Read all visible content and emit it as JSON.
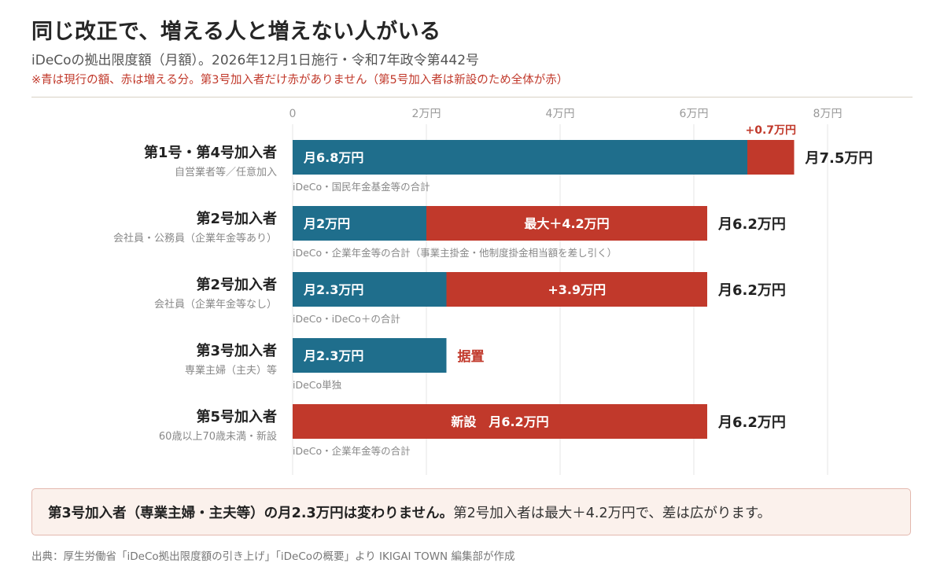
{
  "header": {
    "title": "同じ改正で、増える人と増えない人がいる",
    "subtitle": "iDeCoの拠出限度額（月額）。2026年12月1日施行・令和7年政令第442号",
    "note": "※青は現行の額、赤は増える分。第3号加入者だけ赤がありません（第5号加入者は新設のため全体が赤）"
  },
  "colors": {
    "current": "#1f6e8c",
    "increase": "#c1392b",
    "grid": "#e4e4e4"
  },
  "chart_data": {
    "type": "bar",
    "orientation": "horizontal",
    "stacked": true,
    "unit": "万円",
    "xlim": [
      0,
      8
    ],
    "ticks": [
      "0",
      "2万円",
      "4万円",
      "6万円",
      "8万円"
    ],
    "tick_values": [
      0,
      2,
      4,
      6,
      8
    ],
    "categories": [
      {
        "name": "第1号・第4号加入者",
        "sub": "自営業者等／任意加入",
        "basis": "iDeCo・国民年金基金等の合計",
        "current": 6.8,
        "increase": 0.7,
        "current_label": "月6.8万円",
        "increase_label": "+0.7万円",
        "increase_label_pos": "above",
        "total_label": "月7.5万円"
      },
      {
        "name": "第2号加入者",
        "sub": "会社員・公務員（企業年金等あり）",
        "basis": "iDeCo・企業年金等の合計（事業主掛金・他制度掛金相当額を差し引く）",
        "current": 2.0,
        "increase": 4.2,
        "current_label": "月2万円",
        "increase_label": "最大＋4.2万円",
        "increase_label_pos": "inside",
        "total_label": "月6.2万円"
      },
      {
        "name": "第2号加入者",
        "sub": "会社員（企業年金等なし）",
        "basis": "iDeCo・iDeCo＋の合計",
        "current": 2.3,
        "increase": 3.9,
        "current_label": "月2.3万円",
        "increase_label": "+3.9万円",
        "increase_label_pos": "inside",
        "total_label": "月6.2万円"
      },
      {
        "name": "第3号加入者",
        "sub": "専業主婦（主夫）等",
        "basis": "iDeCo単独",
        "current": 2.3,
        "increase": 0,
        "current_label": "月2.3万円",
        "increase_label": "",
        "increase_label_pos": "none",
        "total_label": "据置"
      },
      {
        "name": "第5号加入者",
        "sub": "60歳以上70歳未満・新設",
        "basis": "iDeCo・企業年金等の合計",
        "current": 0,
        "increase": 6.2,
        "current_label": "",
        "increase_label": "新設　月6.2万円",
        "increase_label_pos": "inside",
        "total_label": "月6.2万円"
      }
    ]
  },
  "callout": {
    "emphasis": "第3号加入者（専業主婦・主夫等）の月2.3万円は変わりません。",
    "rest": "第2号加入者は最大＋4.2万円で、差は広がります。"
  },
  "source": "出典：厚生労働省「iDeCo拠出限度額の引き上げ」「iDeCoの概要」より IKIGAI TOWN 編集部が作成"
}
